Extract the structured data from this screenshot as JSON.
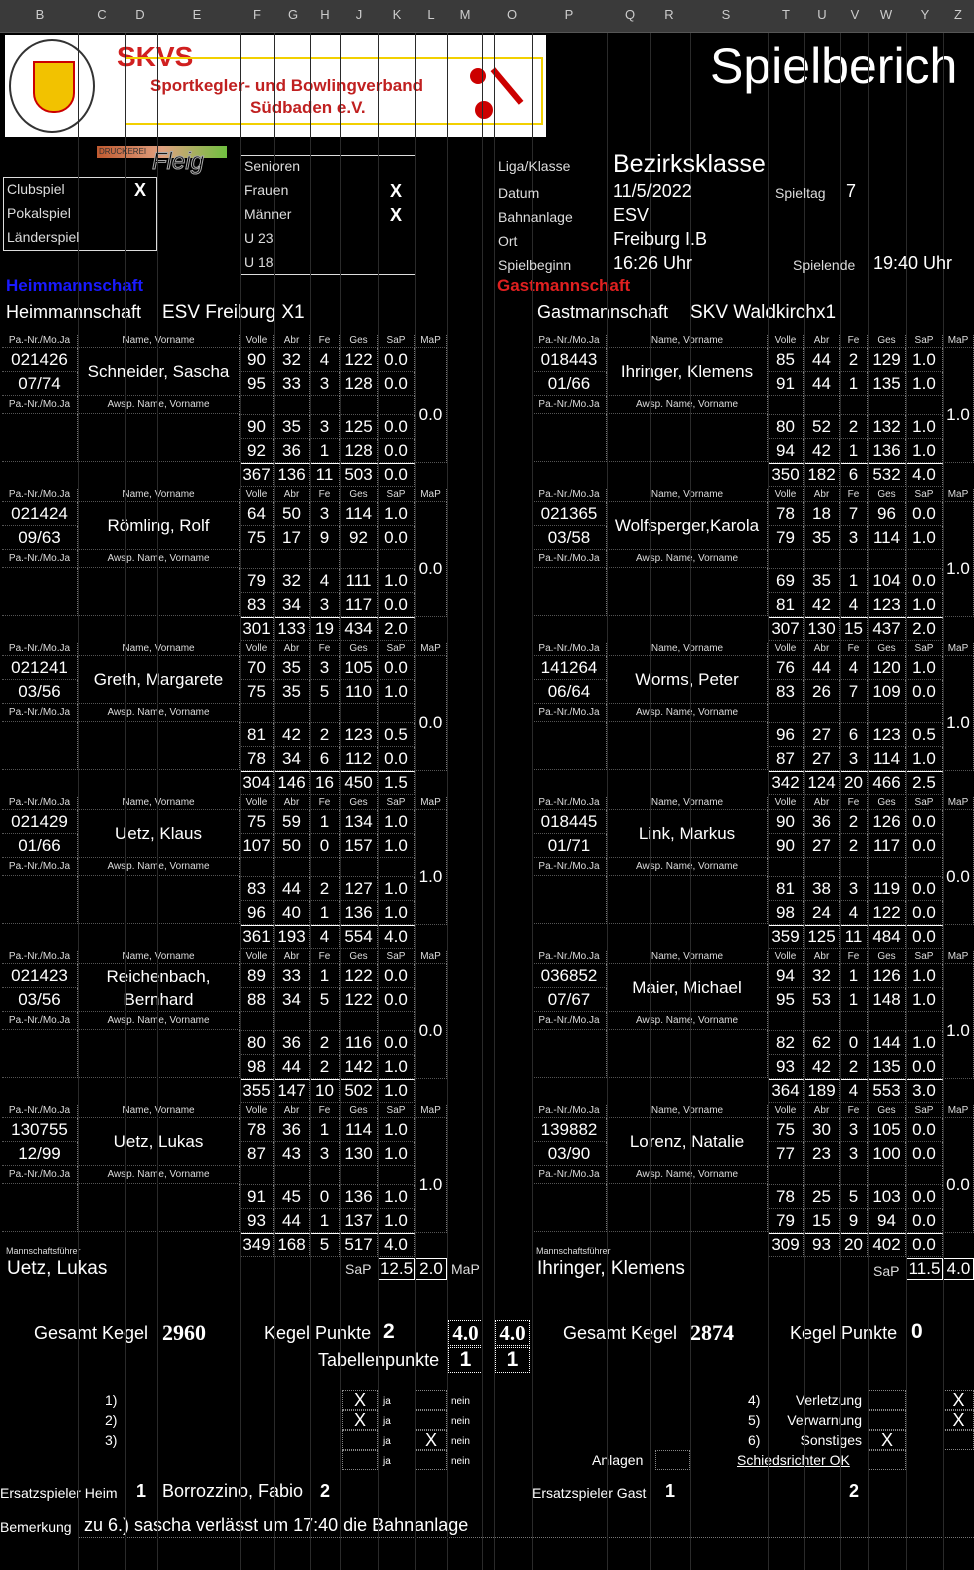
{
  "columns": [
    "B",
    "C",
    "D",
    "E",
    "F",
    "G",
    "H",
    "J",
    "K",
    "L",
    "M",
    "O",
    "P",
    "Q",
    "R",
    "S",
    "T",
    "U",
    "V",
    "W",
    "Y",
    "Z"
  ],
  "logo": {
    "text": "SKVS",
    "org_line1": "Sportkegler- und Bowlingverband",
    "org_line2": "Südbaden e.V.",
    "seal": "SÜDBADEN e.V. SKVS e.V. SPORTKEGLER- UND BOWLING-VERBAND",
    "sponsor": "Fleig",
    "sponsor_small": "DRUCKEREI"
  },
  "title": "Spielberich",
  "match_type": {
    "items": [
      {
        "label": "Clubspiel",
        "mark": "X"
      },
      {
        "label": "Pokalspiel",
        "mark": ""
      },
      {
        "label": "Länderspiel",
        "mark": ""
      }
    ]
  },
  "category": {
    "items": [
      {
        "label": "Senioren",
        "mark": ""
      },
      {
        "label": "Frauen",
        "mark": "X"
      },
      {
        "label": "Männer",
        "mark": "X"
      },
      {
        "label": "U 23",
        "mark": ""
      },
      {
        "label": "U 18",
        "mark": ""
      }
    ]
  },
  "info": {
    "liga_label": "Liga/Klasse",
    "liga": "Bezirksklasse",
    "datum_label": "Datum",
    "datum": "11/5/2022",
    "spieltag_label": "Spieltag",
    "spieltag": "7",
    "bahn_label": "Bahnanlage",
    "bahn": "ESV",
    "ort_label": "Ort",
    "ort": "Freiburg I.B",
    "beginn_label": "Spielbeginn",
    "beginn": "16:26 Uhr",
    "ende_label": "Spielende",
    "ende": "19:40 Uhr"
  },
  "headers": {
    "pass": "Pa.-Nr./Mo.Ja",
    "name": "Name, Vorname",
    "sub_name": "Awsp. Name, Vorname",
    "volle": "Volle",
    "abr": "Abr",
    "fe": "Fe",
    "ges": "Ges",
    "sap": "SaP",
    "map": "MaP",
    "captain": "Mannschaftsführer"
  },
  "home": {
    "overflow_label": "Heimmannschaft",
    "label": "Heimmannschaft",
    "team": "ESV Freiburg X1",
    "color": "#1a1aff",
    "players": [
      {
        "pass": "021426",
        "date": "07/74",
        "name": "Schneider, Sascha",
        "games": [
          [
            "90",
            "32",
            "4",
            "122",
            "0.0"
          ],
          [
            "95",
            "33",
            "3",
            "128",
            "0.0"
          ],
          [
            "90",
            "35",
            "3",
            "125",
            "0.0"
          ],
          [
            "92",
            "36",
            "1",
            "128",
            "0.0"
          ]
        ],
        "total": [
          "367",
          "136",
          "11",
          "503",
          "0.0"
        ],
        "map": "0.0"
      },
      {
        "pass": "021424",
        "date": "09/63",
        "name": "Römling, Rolf",
        "games": [
          [
            "64",
            "50",
            "3",
            "114",
            "1.0"
          ],
          [
            "75",
            "17",
            "9",
            "92",
            "0.0"
          ],
          [
            "79",
            "32",
            "4",
            "111",
            "1.0"
          ],
          [
            "83",
            "34",
            "3",
            "117",
            "0.0"
          ]
        ],
        "total": [
          "301",
          "133",
          "19",
          "434",
          "2.0"
        ],
        "map": "0.0"
      },
      {
        "pass": "021241",
        "date": "03/56",
        "name": "Greth, Margarete",
        "games": [
          [
            "70",
            "35",
            "3",
            "105",
            "0.0"
          ],
          [
            "75",
            "35",
            "5",
            "110",
            "1.0"
          ],
          [
            "81",
            "42",
            "2",
            "123",
            "0.5"
          ],
          [
            "78",
            "34",
            "6",
            "112",
            "0.0"
          ]
        ],
        "total": [
          "304",
          "146",
          "16",
          "450",
          "1.5"
        ],
        "map": "0.0"
      },
      {
        "pass": "021429",
        "date": "01/66",
        "name": "Uetz, Klaus",
        "games": [
          [
            "75",
            "59",
            "1",
            "134",
            "1.0"
          ],
          [
            "107",
            "50",
            "0",
            "157",
            "1.0"
          ],
          [
            "83",
            "44",
            "2",
            "127",
            "1.0"
          ],
          [
            "96",
            "40",
            "1",
            "136",
            "1.0"
          ]
        ],
        "total": [
          "361",
          "193",
          "4",
          "554",
          "4.0"
        ],
        "map": "1.0"
      },
      {
        "pass": "021423",
        "date": "03/56",
        "name": "Reichenbach, Bernhard",
        "games": [
          [
            "89",
            "33",
            "1",
            "122",
            "0.0"
          ],
          [
            "88",
            "34",
            "5",
            "122",
            "0.0"
          ],
          [
            "80",
            "36",
            "2",
            "116",
            "0.0"
          ],
          [
            "98",
            "44",
            "2",
            "142",
            "1.0"
          ]
        ],
        "total": [
          "355",
          "147",
          "10",
          "502",
          "1.0"
        ],
        "map": "0.0"
      },
      {
        "pass": "130755",
        "date": "12/99",
        "name": "Uetz, Lukas",
        "games": [
          [
            "78",
            "36",
            "1",
            "114",
            "1.0"
          ],
          [
            "87",
            "43",
            "3",
            "130",
            "1.0"
          ],
          [
            "91",
            "45",
            "0",
            "136",
            "1.0"
          ],
          [
            "93",
            "44",
            "1",
            "137",
            "1.0"
          ]
        ],
        "total": [
          "349",
          "168",
          "5",
          "517",
          "4.0"
        ],
        "map": "1.0"
      }
    ],
    "captain": "Uetz, Lukas",
    "sap_total": "12.5",
    "map_total": "2.0",
    "gesamt_label": "Gesamt Kegel",
    "gesamt": "2960",
    "kp_label": "Kegel Punkte",
    "kp": "2",
    "mp": "4.0",
    "tp": "1"
  },
  "guest": {
    "overflow_label": "Gastmannschaft",
    "label": "Gastmannschaft",
    "team": "SKV Waldkirchx1",
    "color": "#e02020",
    "players": [
      {
        "pass": "018443",
        "date": "01/66",
        "name": "Ihringer, Klemens",
        "games": [
          [
            "85",
            "44",
            "2",
            "129",
            "1.0"
          ],
          [
            "91",
            "44",
            "1",
            "135",
            "1.0"
          ],
          [
            "80",
            "52",
            "2",
            "132",
            "1.0"
          ],
          [
            "94",
            "42",
            "1",
            "136",
            "1.0"
          ]
        ],
        "total": [
          "350",
          "182",
          "6",
          "532",
          "4.0"
        ],
        "map": "1.0"
      },
      {
        "pass": "021365",
        "date": "03/58",
        "name": "Wolfsperger,Karola",
        "games": [
          [
            "78",
            "18",
            "7",
            "96",
            "0.0"
          ],
          [
            "79",
            "35",
            "3",
            "114",
            "1.0"
          ],
          [
            "69",
            "35",
            "1",
            "104",
            "0.0"
          ],
          [
            "81",
            "42",
            "4",
            "123",
            "1.0"
          ]
        ],
        "total": [
          "307",
          "130",
          "15",
          "437",
          "2.0"
        ],
        "map": "1.0"
      },
      {
        "pass": "141264",
        "date": "06/64",
        "name": "Worms, Peter",
        "games": [
          [
            "76",
            "44",
            "4",
            "120",
            "1.0"
          ],
          [
            "83",
            "26",
            "7",
            "109",
            "0.0"
          ],
          [
            "96",
            "27",
            "6",
            "123",
            "0.5"
          ],
          [
            "87",
            "27",
            "3",
            "114",
            "1.0"
          ]
        ],
        "total": [
          "342",
          "124",
          "20",
          "466",
          "2.5"
        ],
        "map": "1.0"
      },
      {
        "pass": "018445",
        "date": "01/71",
        "name": "Link, Markus",
        "games": [
          [
            "90",
            "36",
            "2",
            "126",
            "0.0"
          ],
          [
            "90",
            "27",
            "2",
            "117",
            "0.0"
          ],
          [
            "81",
            "38",
            "3",
            "119",
            "0.0"
          ],
          [
            "98",
            "24",
            "4",
            "122",
            "0.0"
          ]
        ],
        "total": [
          "359",
          "125",
          "11",
          "484",
          "0.0"
        ],
        "map": "0.0"
      },
      {
        "pass": "036852",
        "date": "07/67",
        "name": "Maier, Michael",
        "games": [
          [
            "94",
            "32",
            "1",
            "126",
            "1.0"
          ],
          [
            "95",
            "53",
            "1",
            "148",
            "1.0"
          ],
          [
            "82",
            "62",
            "0",
            "144",
            "1.0"
          ],
          [
            "93",
            "42",
            "2",
            "135",
            "0.0"
          ]
        ],
        "total": [
          "364",
          "189",
          "4",
          "553",
          "3.0"
        ],
        "map": "1.0"
      },
      {
        "pass": "139882",
        "date": "03/90",
        "name": "Lorenz, Natalie",
        "games": [
          [
            "75",
            "30",
            "3",
            "105",
            "0.0"
          ],
          [
            "77",
            "23",
            "3",
            "100",
            "0.0"
          ],
          [
            "78",
            "25",
            "5",
            "103",
            "0.0"
          ],
          [
            "79",
            "15",
            "9",
            "94",
            "0.0"
          ]
        ],
        "total": [
          "309",
          "93",
          "20",
          "402",
          "0.0"
        ],
        "map": "0.0"
      }
    ],
    "captain": "Ihringer, Klemens",
    "sap_total": "11.5",
    "map_total": "4.0",
    "gesamt_label": "Gesamt Kegel",
    "gesamt": "2874",
    "kp_label": "Kegel Punkte",
    "kp": "0",
    "mp": "4.0",
    "tp": "1"
  },
  "tabellen_label": "Tabellenpunkte",
  "questions": {
    "left": [
      {
        "n": "1)",
        "ja": "X",
        "nein": ""
      },
      {
        "n": "2)",
        "ja": "X",
        "nein": ""
      },
      {
        "n": "3)",
        "ja": "",
        "nein": "X"
      },
      {
        "n": "",
        "ja": "",
        "nein": ""
      }
    ],
    "ja": "ja",
    "nein": "nein",
    "right": [
      {
        "n": "4)",
        "label": "Verletzung",
        "a": "",
        "b": "X"
      },
      {
        "n": "5)",
        "label": "Verwarnung",
        "a": "",
        "b": "X"
      },
      {
        "n": "6)",
        "label": "Sonstiges",
        "a": "X",
        "b": ""
      }
    ],
    "anlagen": "Anlagen",
    "schiri": "Schiedsrichter OK"
  },
  "subs": {
    "home_label": "Ersatzspieler Heim",
    "home_n1": "1",
    "home_name": "Borrozzino, Fabio",
    "home_n2": "2",
    "guest_label": "Ersatzspieler Gast",
    "guest_n1": "1",
    "guest_n2": "2"
  },
  "remark": {
    "label": "Bemerkung",
    "text": "zu 6.) sascha verlässt um 17:40 die Bahnanlage"
  }
}
